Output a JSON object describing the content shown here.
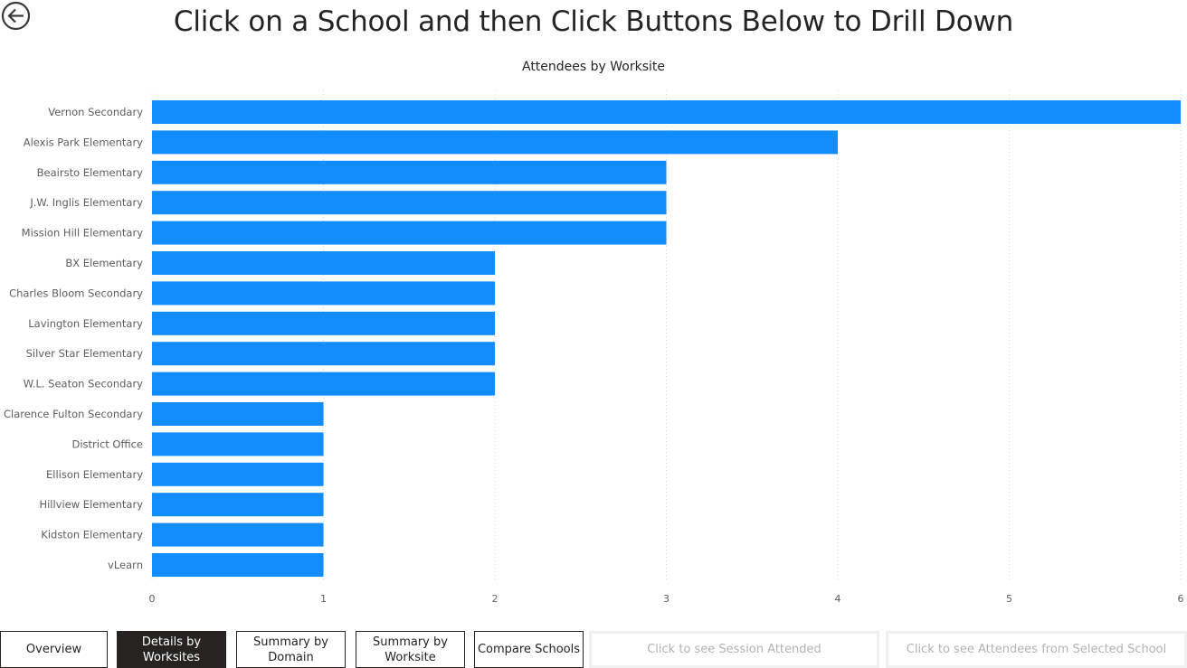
{
  "header": {
    "title": "Click on a School and then Click Buttons Below to Drill Down",
    "back_icon": "back-arrow-icon"
  },
  "chart_data": {
    "type": "bar",
    "orientation": "horizontal",
    "title": "Attendees by Worksite",
    "xlabel": "",
    "ylabel": "",
    "categories": [
      "Vernon Secondary",
      "Alexis Park Elementary",
      "Beairsto Elementary",
      "J.W. Inglis Elementary",
      "Mission Hill Elementary",
      "BX Elementary",
      "Charles Bloom Secondary",
      "Lavington Elementary",
      "Silver Star Elementary",
      "W.L. Seaton Secondary",
      "Clarence Fulton Secondary",
      "District Office",
      "Ellison Elementary",
      "Hillview Elementary",
      "Kidston Elementary",
      "vLearn"
    ],
    "values": [
      6,
      4,
      3,
      3,
      3,
      2,
      2,
      2,
      2,
      2,
      1,
      1,
      1,
      1,
      1,
      1
    ],
    "xlim": [
      0,
      6
    ],
    "xticks": [
      "0",
      "1",
      "2",
      "3",
      "4",
      "5",
      "6"
    ],
    "grid": true,
    "bar_color": "#118DFF"
  },
  "buttons": [
    {
      "label": "Overview",
      "state": "normal"
    },
    {
      "label": "Details by\nWorksites",
      "state": "active"
    },
    {
      "label": "Summary by\nDomain",
      "state": "normal"
    },
    {
      "label": "Summary by\nWorksite",
      "state": "normal"
    },
    {
      "label": "Compare Schools",
      "state": "normal"
    },
    {
      "label": "Click to see Session Attended",
      "state": "disabled"
    },
    {
      "label": "Click to see Attendees from Selected School",
      "state": "disabled"
    }
  ]
}
